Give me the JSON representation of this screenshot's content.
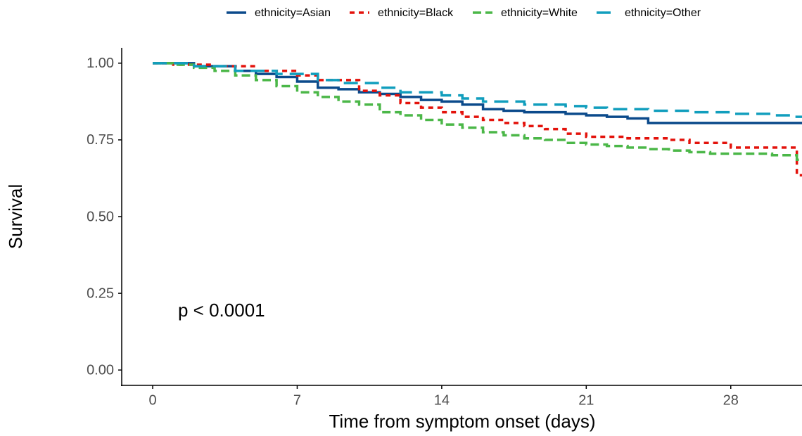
{
  "chart_data": {
    "type": "step",
    "xlabel": "Time from symptom onset (days)",
    "ylabel": "Survival",
    "annotation": "p < 0.0001",
    "xlim": [
      -1.5,
      31.45
    ],
    "ylim": [
      -0.05,
      1.05
    ],
    "xticks": [
      0,
      7,
      14,
      21,
      28
    ],
    "yticks": [
      {
        "value": 0,
        "label": "0.00"
      },
      {
        "value": 0.25,
        "label": "0.25"
      },
      {
        "value": 0.5,
        "label": "0.50"
      },
      {
        "value": 0.75,
        "label": "0.75"
      },
      {
        "value": 1,
        "label": "1.00"
      }
    ],
    "legend": "top",
    "series": [
      {
        "name": "ethnicity=Asian",
        "color": "#0b4a8b",
        "dash": "solid",
        "x": [
          0,
          2,
          4,
          5,
          6,
          7,
          8,
          9,
          10,
          11,
          12,
          13,
          14,
          15,
          16,
          17,
          18,
          20,
          21,
          22,
          23,
          24,
          31.45
        ],
        "values": [
          1.0,
          0.99,
          0.975,
          0.965,
          0.955,
          0.94,
          0.92,
          0.915,
          0.905,
          0.9,
          0.89,
          0.88,
          0.875,
          0.865,
          0.85,
          0.845,
          0.84,
          0.835,
          0.83,
          0.825,
          0.82,
          0.805,
          0.805
        ]
      },
      {
        "name": "ethnicity=Black",
        "color": "#e3120b",
        "dash": "dotted",
        "x": [
          0,
          1,
          3,
          5,
          7,
          8,
          10,
          11,
          12,
          13,
          14,
          15,
          16,
          17,
          18,
          19,
          20,
          21,
          23,
          25,
          26,
          28,
          31.2,
          31.45
        ],
        "values": [
          1.0,
          0.995,
          0.99,
          0.975,
          0.96,
          0.945,
          0.91,
          0.895,
          0.87,
          0.855,
          0.84,
          0.825,
          0.815,
          0.805,
          0.795,
          0.785,
          0.77,
          0.76,
          0.755,
          0.75,
          0.74,
          0.725,
          0.635,
          0.635
        ]
      },
      {
        "name": "ethnicity=White",
        "color": "#4bb748",
        "dash": "dashed",
        "x": [
          0,
          1,
          2,
          3,
          4,
          5,
          6,
          7,
          8,
          9,
          10,
          11,
          12,
          13,
          14,
          15,
          16,
          17,
          18,
          19,
          20,
          21,
          22,
          23,
          24,
          25,
          26,
          27,
          30,
          31.2,
          31.45
        ],
        "values": [
          1.0,
          0.995,
          0.985,
          0.975,
          0.96,
          0.945,
          0.925,
          0.905,
          0.89,
          0.875,
          0.865,
          0.84,
          0.83,
          0.815,
          0.8,
          0.79,
          0.775,
          0.765,
          0.755,
          0.75,
          0.74,
          0.735,
          0.73,
          0.725,
          0.72,
          0.715,
          0.71,
          0.705,
          0.7,
          0.685,
          0.685
        ]
      },
      {
        "name": "ethnicity=Other",
        "color": "#119ebd",
        "dash": "longdash",
        "x": [
          0,
          2,
          4,
          6,
          8,
          9,
          11,
          12,
          14,
          15,
          16,
          18,
          20,
          21,
          22,
          24,
          26,
          28,
          30,
          31,
          31.45
        ],
        "values": [
          1.0,
          0.99,
          0.975,
          0.965,
          0.945,
          0.935,
          0.92,
          0.905,
          0.895,
          0.885,
          0.875,
          0.865,
          0.86,
          0.855,
          0.85,
          0.845,
          0.84,
          0.835,
          0.83,
          0.825,
          0.825
        ]
      }
    ]
  }
}
